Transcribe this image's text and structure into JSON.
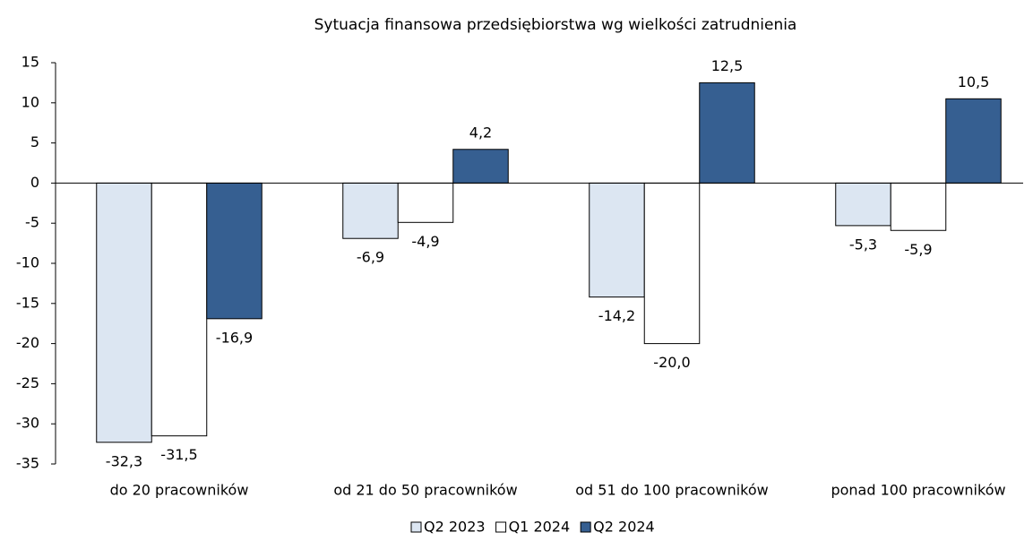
{
  "chart_data": {
    "type": "bar",
    "title": "Sytuacja finansowa przedsiębiorstwa wg wielkości zatrudnienia",
    "categories": [
      "do 20 pracowników",
      "od 21 do 50 pracowników",
      "od 51 do 100 pracowników",
      "ponad 100 pracowników"
    ],
    "series": [
      {
        "name": "Q2 2023",
        "color": "#dce6f2",
        "values": [
          -32.3,
          -6.9,
          -14.2,
          -5.3
        ],
        "value_labels": [
          "-32,3",
          "-6,9",
          "-14,2",
          "-5,3"
        ]
      },
      {
        "name": "Q1 2024",
        "color": "#ffffff",
        "values": [
          -31.5,
          -4.9,
          -20.0,
          -5.9
        ],
        "value_labels": [
          "-31,5",
          "-4,9",
          "-20,0",
          "-5,9"
        ]
      },
      {
        "name": "Q2 2024",
        "color": "#365f91",
        "values": [
          -16.9,
          4.2,
          12.5,
          10.5
        ],
        "value_labels": [
          "-16,9",
          "4,2",
          "12,5",
          "10,5"
        ]
      }
    ],
    "ylim": [
      -35,
      15
    ],
    "yticks": [
      -35,
      -30,
      -25,
      -20,
      -15,
      -10,
      -5,
      0,
      5,
      10,
      15
    ],
    "grid": false,
    "legend": "bottom"
  }
}
